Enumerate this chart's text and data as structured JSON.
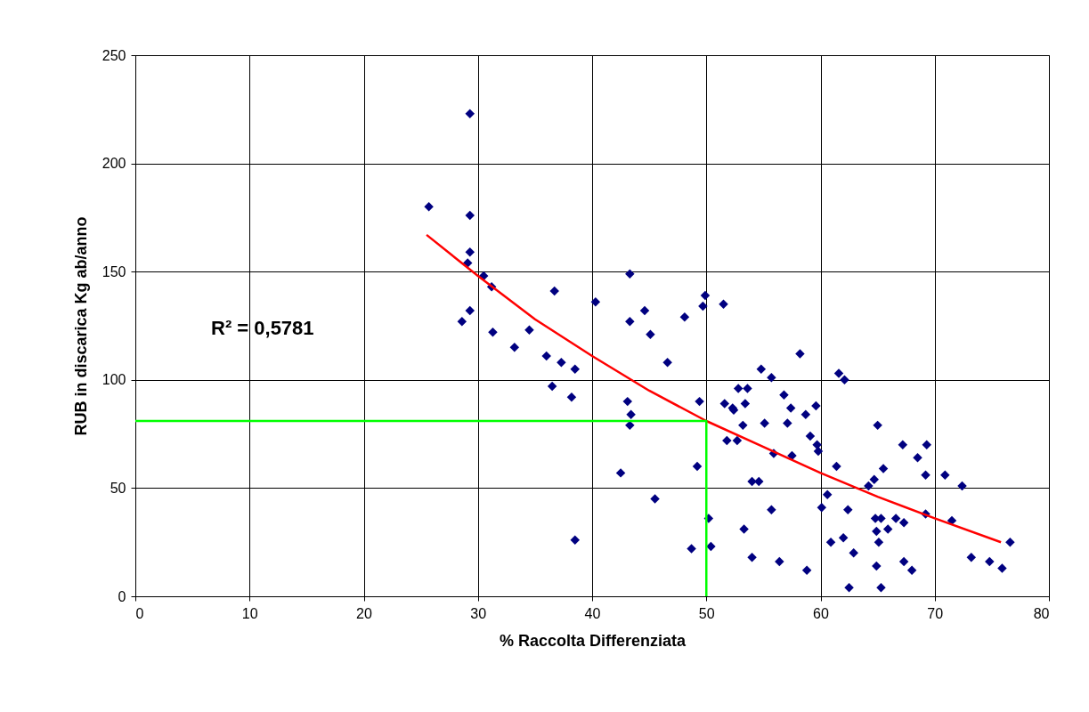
{
  "chart_data": {
    "type": "scatter",
    "xlabel": "% Raccolta Differenziata",
    "ylabel": "RUB in discarica Kg ab/anno",
    "xlim": [
      0,
      80
    ],
    "xticks": [
      0,
      10,
      20,
      30,
      40,
      50,
      60,
      70,
      80
    ],
    "ylim": [
      0,
      250
    ],
    "yticks": [
      0,
      50,
      100,
      150,
      200,
      250
    ],
    "grid": true,
    "annotations": [
      "R² = 0,5781"
    ],
    "series": [
      {
        "marker": "diamond",
        "color": "#000080",
        "x": [
          29.3,
          25.7,
          29.3,
          29.3,
          29.1,
          30.5,
          31.2,
          36.7,
          40.3,
          43.3,
          44.6,
          29.3,
          28.6,
          31.3,
          34.5,
          33.2,
          36.0,
          43.3,
          45.1,
          48.1,
          49.9,
          49.7,
          51.5,
          46.6,
          37.3,
          38.5,
          58.2,
          36.5,
          38.2,
          43.1,
          43.4,
          43.3,
          49.4,
          54.8,
          55.7,
          52.8,
          53.6,
          56.8,
          51.6,
          52.3,
          52.4,
          53.4,
          57.4,
          53.2,
          55.1,
          57.1,
          51.8,
          52.7,
          55.9,
          57.5,
          49.2,
          42.5,
          54.0,
          54.6,
          45.5,
          55.7,
          50.2,
          53.3,
          38.5,
          48.7,
          50.4,
          54.0,
          56.4,
          61.6,
          62.1,
          58.7,
          59.6,
          65.0,
          59.1,
          59.7,
          59.8,
          61.4,
          67.2,
          69.3,
          68.5,
          65.5,
          69.2,
          70.9,
          72.4,
          64.7,
          64.2,
          60.6,
          60.1,
          62.4,
          69.2,
          71.5,
          64.8,
          65.3,
          66.6,
          67.3,
          65.9,
          64.9,
          65.1,
          60.9,
          62.0,
          62.9,
          76.6,
          73.2,
          74.8,
          75.9,
          67.3,
          68.0,
          64.9,
          58.8,
          62.5,
          65.3
        ],
        "values": [
          223,
          180,
          176,
          159,
          154,
          148,
          143,
          141,
          136,
          149,
          132,
          132,
          127,
          122,
          123,
          115,
          111,
          127,
          121,
          129,
          139,
          134,
          135,
          108,
          108,
          105,
          112,
          97,
          92,
          90,
          84,
          79,
          90,
          105,
          101,
          96,
          96,
          93,
          89,
          87,
          86,
          89,
          87,
          79,
          80,
          80,
          72,
          72,
          66,
          65,
          60,
          57,
          53,
          53,
          45,
          40,
          36,
          31,
          26,
          22,
          23,
          18,
          16,
          103,
          100,
          84,
          88,
          79,
          74,
          70,
          67,
          60,
          70,
          70,
          64,
          59,
          56,
          56,
          51,
          54,
          51,
          47,
          41,
          40,
          38,
          35,
          36,
          36,
          36,
          34,
          31,
          30,
          25,
          25,
          27,
          20,
          25,
          18,
          16,
          13,
          16,
          12,
          14,
          12,
          4,
          4
        ]
      },
      {
        "type": "line",
        "marker": "none",
        "color": "#ff0000",
        "x": [
          25.5,
          30,
          35,
          40,
          45,
          50,
          55,
          60,
          65,
          70,
          75.8
        ],
        "values": [
          167,
          148,
          128,
          111,
          95,
          81,
          69,
          57,
          46,
          36,
          25
        ]
      },
      {
        "type": "line",
        "marker": "none",
        "color": "#00ff00",
        "x": [
          0,
          50,
          50
        ],
        "values": [
          81,
          81,
          0
        ]
      }
    ]
  }
}
